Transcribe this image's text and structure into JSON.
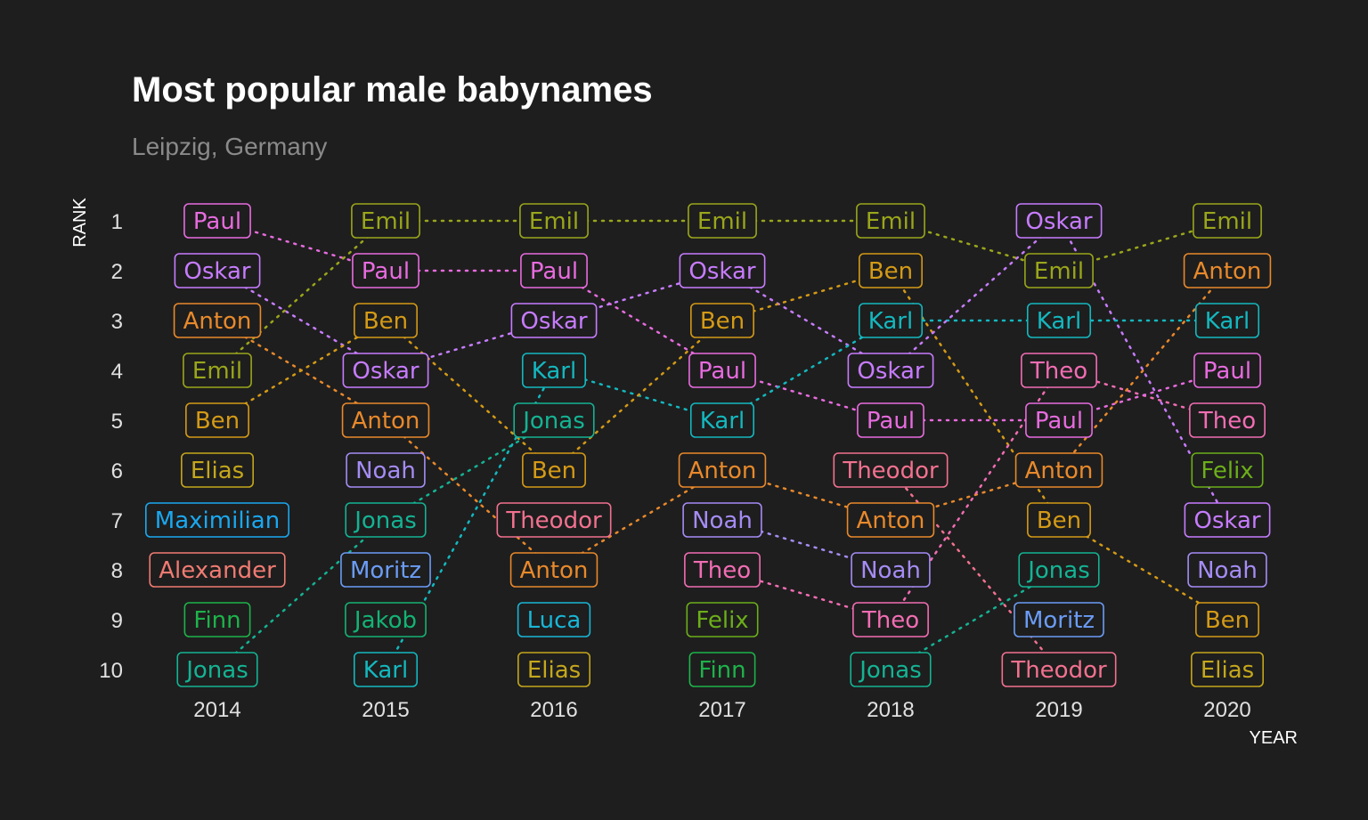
{
  "chart_data": {
    "type": "bump",
    "title": "Most popular male babynames",
    "subtitle": "Leipzig, Germany",
    "xlabel": "YEAR",
    "ylabel": "RANK",
    "years": [
      "2014",
      "2015",
      "2016",
      "2017",
      "2018",
      "2019",
      "2020"
    ],
    "ranks": [
      "1",
      "2",
      "3",
      "4",
      "5",
      "6",
      "7",
      "8",
      "9",
      "10"
    ],
    "rankings": [
      [
        "Paul",
        "Oskar",
        "Anton",
        "Emil",
        "Ben",
        "Elias",
        "Maximilian",
        "Alexander",
        "Finn",
        "Jonas"
      ],
      [
        "Emil",
        "Paul",
        "Ben",
        "Oskar",
        "Anton",
        "Noah",
        "Jonas",
        "Moritz",
        "Jakob",
        "Karl"
      ],
      [
        "Emil",
        "Paul",
        "Oskar",
        "Karl",
        "Jonas",
        "Ben",
        "Theodor",
        "Anton",
        "Luca",
        "Elias"
      ],
      [
        "Emil",
        "Oskar",
        "Ben",
        "Paul",
        "Karl",
        "Anton",
        "Noah",
        "Theo",
        "Felix",
        "Finn"
      ],
      [
        "Emil",
        "Ben",
        "Karl",
        "Oskar",
        "Paul",
        "Theodor",
        "Anton",
        "Noah",
        "Theo",
        "Jonas"
      ],
      [
        "Oskar",
        "Emil",
        "Karl",
        "Theo",
        "Paul",
        "Anton",
        "Ben",
        "Jonas",
        "Moritz",
        "Theodor"
      ],
      [
        "Emil",
        "Anton",
        "Karl",
        "Paul",
        "Theo",
        "Felix",
        "Oskar",
        "Noah",
        "Ben",
        "Elias"
      ]
    ],
    "colors": {
      "Paul": "#e86bdf",
      "Oskar": "#c77cff",
      "Anton": "#e8892b",
      "Emil": "#9aa61a",
      "Ben": "#d49a16",
      "Elias": "#c4a71c",
      "Maximilian": "#1aa8f0",
      "Alexander": "#f07b72",
      "Finn": "#1db34a",
      "Jonas": "#14b393",
      "Noah": "#a58cf5",
      "Moritz": "#6b9cf5",
      "Jakob": "#13b374",
      "Karl": "#13b8bf",
      "Theodor": "#f2718f",
      "Luca": "#18b6d6",
      "Theo": "#f26db3",
      "Felix": "#6cae1a"
    }
  }
}
